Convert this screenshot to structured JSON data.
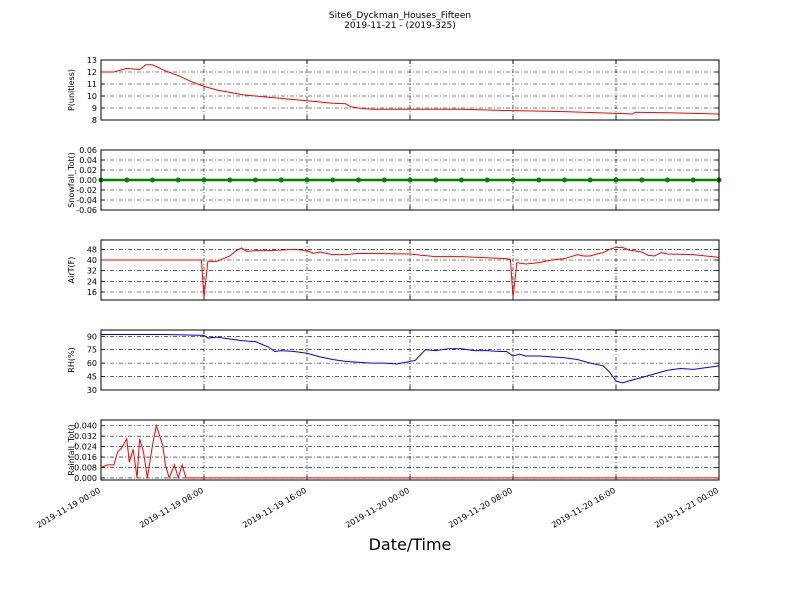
{
  "chart_data": [
    {
      "type": "line",
      "title": "Site6_Dyckman_Houses_Fifteen",
      "subtitle": "2019-11-21 - (2019-325)",
      "ylabel": "P(unitless)",
      "color": "#ff0000",
      "x": [
        "2019-11-19 00:00",
        "2019-11-19 01:00",
        "2019-11-19 02:00",
        "2019-11-19 03:00",
        "2019-11-19 03:30",
        "2019-11-19 04:00",
        "2019-11-19 05:00",
        "2019-11-19 06:00",
        "2019-11-19 07:00",
        "2019-11-19 08:00",
        "2019-11-19 09:00",
        "2019-11-19 10:00",
        "2019-11-19 11:00",
        "2019-11-19 12:00",
        "2019-11-19 13:00",
        "2019-11-19 14:00",
        "2019-11-19 15:00",
        "2019-11-19 16:00",
        "2019-11-19 17:00",
        "2019-11-19 18:00",
        "2019-11-19 19:00",
        "2019-11-19 19:24",
        "2019-11-19 20:00",
        "2019-11-19 21:00",
        "2019-11-20 00:00",
        "2019-11-20 04:00",
        "2019-11-20 07:00",
        "2019-11-20 12:00",
        "2019-11-20 16:00",
        "2019-11-20 17:18",
        "2019-11-20 17:30",
        "2019-11-20 20:00",
        "2019-11-21 00:00"
      ],
      "values": [
        12.0,
        12.0,
        12.3,
        12.2,
        12.6,
        12.6,
        12.1,
        11.7,
        11.2,
        10.8,
        10.5,
        10.3,
        10.1,
        10.0,
        9.9,
        9.8,
        9.7,
        9.6,
        9.5,
        9.4,
        9.35,
        9.1,
        9.0,
        8.9,
        8.9,
        8.9,
        8.8,
        8.7,
        8.55,
        8.5,
        8.65,
        8.6,
        8.5
      ],
      "ylim": [
        8,
        13
      ],
      "yticks": [
        8,
        9,
        10,
        11,
        12,
        13
      ],
      "xlim": [
        "2019-11-19 00:00",
        "2019-11-21 00:00"
      ],
      "xticks": [
        "2019-11-19 00:00",
        "2019-11-19 08:00",
        "2019-11-19 16:00",
        "2019-11-20 00:00",
        "2019-11-20 08:00",
        "2019-11-20 16:00",
        "2019-11-21 00:00"
      ],
      "grid": true
    },
    {
      "type": "line",
      "ylabel": "Snowfall_Tot()",
      "color": "#008000",
      "marker": true,
      "x": [
        "2019-11-19 00:00",
        "2019-11-19 02:00",
        "2019-11-19 04:00",
        "2019-11-19 06:00",
        "2019-11-19 08:00",
        "2019-11-19 10:00",
        "2019-11-19 12:00",
        "2019-11-19 14:00",
        "2019-11-19 16:00",
        "2019-11-19 18:00",
        "2019-11-19 20:00",
        "2019-11-19 22:00",
        "2019-11-20 00:00",
        "2019-11-20 02:00",
        "2019-11-20 04:00",
        "2019-11-20 06:00",
        "2019-11-20 08:00",
        "2019-11-20 10:00",
        "2019-11-20 12:00",
        "2019-11-20 14:00",
        "2019-11-20 16:00",
        "2019-11-20 18:00",
        "2019-11-20 20:00",
        "2019-11-20 22:00",
        "2019-11-21 00:00"
      ],
      "values": [
        0,
        0,
        0,
        0,
        0,
        0,
        0,
        0,
        0,
        0,
        0,
        0,
        0,
        0,
        0,
        0,
        0,
        0,
        0,
        0,
        0,
        0,
        0,
        0,
        0
      ],
      "ylim": [
        -0.06,
        0.06
      ],
      "yticks": [
        -0.06,
        -0.04,
        -0.02,
        {
          "value": 0,
          "label": "0.00"
        },
        0.02,
        0.04,
        0.06
      ],
      "xlim": [
        "2019-11-19 00:00",
        "2019-11-21 00:00"
      ],
      "xticks": [
        "2019-11-19 00:00",
        "2019-11-19 08:00",
        "2019-11-19 16:00",
        "2019-11-20 00:00",
        "2019-11-20 08:00",
        "2019-11-20 16:00",
        "2019-11-21 00:00"
      ],
      "grid": true
    },
    {
      "type": "line",
      "ylabel": "AirT(F)",
      "color": "#ff0000",
      "x": [
        "2019-11-19 00:00",
        "2019-11-19 04:00",
        "2019-11-19 07:48",
        "2019-11-19 08:00",
        "2019-11-19 08:18",
        "2019-11-19 09:00",
        "2019-11-19 09:30",
        "2019-11-19 10:00",
        "2019-11-19 10:30",
        "2019-11-19 10:54",
        "2019-11-19 11:18",
        "2019-11-19 12:00",
        "2019-11-19 13:00",
        "2019-11-19 14:00",
        "2019-11-19 15:00",
        "2019-11-19 16:00",
        "2019-11-19 16:30",
        "2019-11-19 17:00",
        "2019-11-19 18:00",
        "2019-11-19 19:00",
        "2019-11-19 20:00",
        "2019-11-20 00:00",
        "2019-11-20 01:00",
        "2019-11-20 02:00",
        "2019-11-20 04:00",
        "2019-11-20 07:30",
        "2019-11-20 07:48",
        "2019-11-20 08:00",
        "2019-11-20 08:18",
        "2019-11-20 09:00",
        "2019-11-20 10:00",
        "2019-11-20 11:00",
        "2019-11-20 12:00",
        "2019-11-20 13:00",
        "2019-11-20 13:30",
        "2019-11-20 14:00",
        "2019-11-20 14:30",
        "2019-11-20 15:00",
        "2019-11-20 15:30",
        "2019-11-20 16:00",
        "2019-11-20 16:30",
        "2019-11-20 17:00",
        "2019-11-20 18:00",
        "2019-11-20 18:30",
        "2019-11-20 19:00",
        "2019-11-20 19:30",
        "2019-11-20 20:00",
        "2019-11-20 22:00",
        "2019-11-21 00:00"
      ],
      "values": [
        40,
        40,
        40,
        12,
        39,
        39,
        41,
        43,
        47,
        49,
        46.5,
        47,
        47,
        47.5,
        48,
        47,
        45,
        46,
        44,
        44,
        45,
        44.5,
        43.5,
        42.5,
        42.5,
        41,
        40.5,
        12,
        38,
        37,
        38,
        40,
        41,
        44,
        43,
        43,
        44.5,
        45.5,
        48,
        49.5,
        49.5,
        47.5,
        46,
        43.5,
        43,
        45.5,
        44.5,
        44,
        42
      ],
      "ylim": [
        10,
        55
      ],
      "yticks": [
        16,
        24,
        32,
        40,
        48
      ],
      "xlim": [
        "2019-11-19 00:00",
        "2019-11-21 00:00"
      ],
      "xticks": [
        "2019-11-19 00:00",
        "2019-11-19 08:00",
        "2019-11-19 16:00",
        "2019-11-20 00:00",
        "2019-11-20 08:00",
        "2019-11-20 16:00",
        "2019-11-21 00:00"
      ],
      "grid": true
    },
    {
      "type": "line",
      "ylabel": "RH(%)",
      "color": "#0000ff",
      "x": [
        "2019-11-19 00:00",
        "2019-11-19 05:00",
        "2019-11-19 08:00",
        "2019-11-19 08:18",
        "2019-11-19 09:00",
        "2019-11-19 10:00",
        "2019-11-19 11:00",
        "2019-11-19 12:00",
        "2019-11-19 13:00",
        "2019-11-19 13:30",
        "2019-11-19 14:00",
        "2019-11-19 15:00",
        "2019-11-19 16:00",
        "2019-11-19 17:00",
        "2019-11-19 18:00",
        "2019-11-19 19:00",
        "2019-11-19 20:00",
        "2019-11-19 21:00",
        "2019-11-19 22:00",
        "2019-11-19 23:00",
        "2019-11-20 00:00",
        "2019-11-20 00:24",
        "2019-11-20 01:12",
        "2019-11-20 02:00",
        "2019-11-20 03:00",
        "2019-11-20 04:00",
        "2019-11-20 05:00",
        "2019-11-20 06:00",
        "2019-11-20 07:00",
        "2019-11-20 07:30",
        "2019-11-20 08:00",
        "2019-11-20 08:30",
        "2019-11-20 09:00",
        "2019-11-20 10:00",
        "2019-11-20 11:00",
        "2019-11-20 12:00",
        "2019-11-20 13:00",
        "2019-11-20 14:00",
        "2019-11-20 15:00",
        "2019-11-20 15:30",
        "2019-11-20 16:00",
        "2019-11-20 16:30",
        "2019-11-20 17:00",
        "2019-11-20 18:00",
        "2019-11-20 19:00",
        "2019-11-20 20:00",
        "2019-11-20 21:00",
        "2019-11-20 22:00",
        "2019-11-20 23:00",
        "2019-11-21 00:00"
      ],
      "values": [
        92,
        92,
        91,
        88,
        89,
        87,
        85,
        84,
        78,
        73,
        74,
        73,
        71,
        67,
        64,
        62,
        61,
        60,
        60,
        59,
        62,
        63,
        75,
        74,
        76,
        76,
        74,
        74,
        73,
        73,
        68,
        70,
        68,
        68,
        67,
        66,
        64,
        60,
        57,
        50,
        40,
        38,
        40,
        44,
        48,
        52,
        54,
        53,
        55,
        57
      ],
      "ylim": [
        30,
        97
      ],
      "yticks": [
        30,
        45,
        60,
        75,
        90
      ],
      "xlim": [
        "2019-11-19 00:00",
        "2019-11-21 00:00"
      ],
      "xticks": [
        "2019-11-19 00:00",
        "2019-11-19 08:00",
        "2019-11-19 16:00",
        "2019-11-20 00:00",
        "2019-11-20 08:00",
        "2019-11-20 16:00",
        "2019-11-21 00:00"
      ],
      "grid": true
    },
    {
      "type": "line",
      "ylabel": "Rainfall_Tot()",
      "xlabel": "Date/Time",
      "color": "#ff0000",
      "x": [
        "2019-11-19 00:00",
        "2019-11-19 00:30",
        "2019-11-19 01:00",
        "2019-11-19 01:18",
        "2019-11-19 01:36",
        "2019-11-19 02:00",
        "2019-11-19 02:12",
        "2019-11-19 02:30",
        "2019-11-19 02:48",
        "2019-11-19 03:00",
        "2019-11-19 03:18",
        "2019-11-19 03:36",
        "2019-11-19 04:00",
        "2019-11-19 04:18",
        "2019-11-19 04:48",
        "2019-11-19 05:00",
        "2019-11-19 05:18",
        "2019-11-19 05:42",
        "2019-11-19 06:00",
        "2019-11-19 06:18",
        "2019-11-19 06:36",
        "2019-11-19 12:00",
        "2019-11-20 00:00",
        "2019-11-20 12:00",
        "2019-11-21 00:00"
      ],
      "values": [
        0.008,
        0.01,
        0.01,
        0.02,
        0.023,
        0.03,
        0.012,
        0.022,
        0,
        0.03,
        0.02,
        0,
        0.025,
        0.04,
        0.025,
        0.01,
        0,
        0.01,
        0,
        0.01,
        0,
        0,
        0,
        0,
        0
      ],
      "ylim": [
        -0.0016,
        0.0444
      ],
      "yticks": [
        {
          "value": 0,
          "label": "0.000"
        },
        {
          "value": 0.008,
          "label": "0.008"
        },
        {
          "value": 0.016,
          "label": "0.016"
        },
        {
          "value": 0.024,
          "label": "0.024"
        },
        {
          "value": 0.032,
          "label": "0.032"
        },
        {
          "value": 0.04,
          "label": "0.040"
        }
      ],
      "xlim": [
        "2019-11-19 00:00",
        "2019-11-21 00:00"
      ],
      "xticks": [
        "2019-11-19 00:00",
        "2019-11-19 08:00",
        "2019-11-19 16:00",
        "2019-11-20 00:00",
        "2019-11-20 08:00",
        "2019-11-20 16:00",
        "2019-11-21 00:00"
      ],
      "grid": true
    }
  ]
}
